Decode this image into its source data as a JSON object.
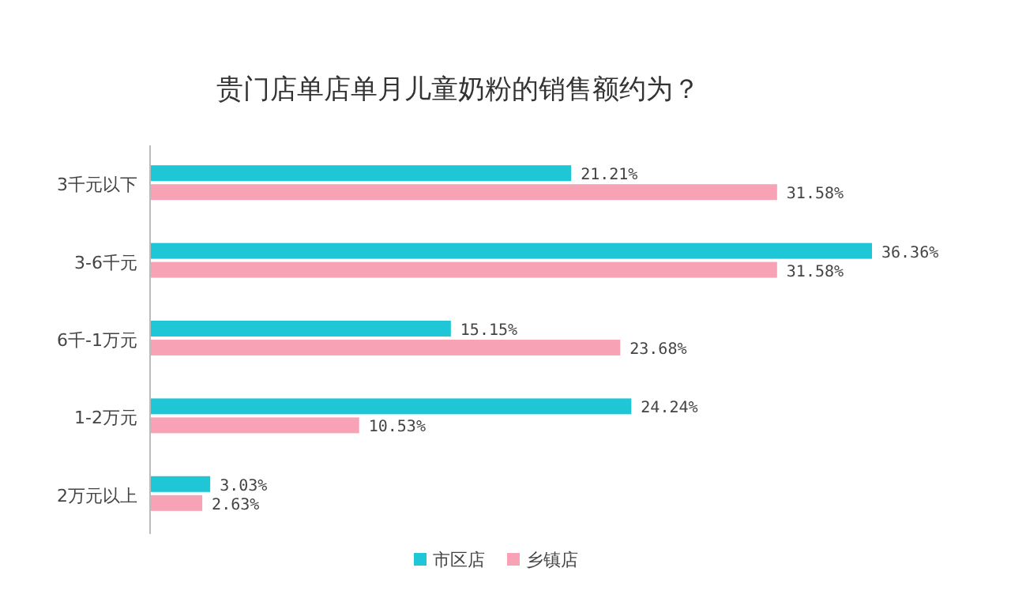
{
  "chart_data": {
    "type": "bar",
    "orientation": "horizontal",
    "title": "贵门店单店单月儿童奶粉的销售额约为？",
    "categories": [
      "3千元以下",
      "3-6千元",
      "6千-1万元",
      "1-2万元",
      "2万元以上"
    ],
    "series": [
      {
        "name": "市区店",
        "color": "#1ec6d6",
        "values": [
          21.21,
          36.36,
          15.15,
          24.24,
          3.03
        ],
        "value_labels": [
          "21.21%",
          "36.36%",
          "15.15%",
          "24.24%",
          "3.03%"
        ]
      },
      {
        "name": "乡镇店",
        "color": "#f7a3b5",
        "values": [
          31.58,
          31.58,
          23.68,
          10.53,
          2.63
        ],
        "value_labels": [
          "31.58%",
          "31.58%",
          "23.68%",
          "10.53%",
          "2.63%"
        ]
      }
    ],
    "legend": "bottom",
    "grid": false
  }
}
